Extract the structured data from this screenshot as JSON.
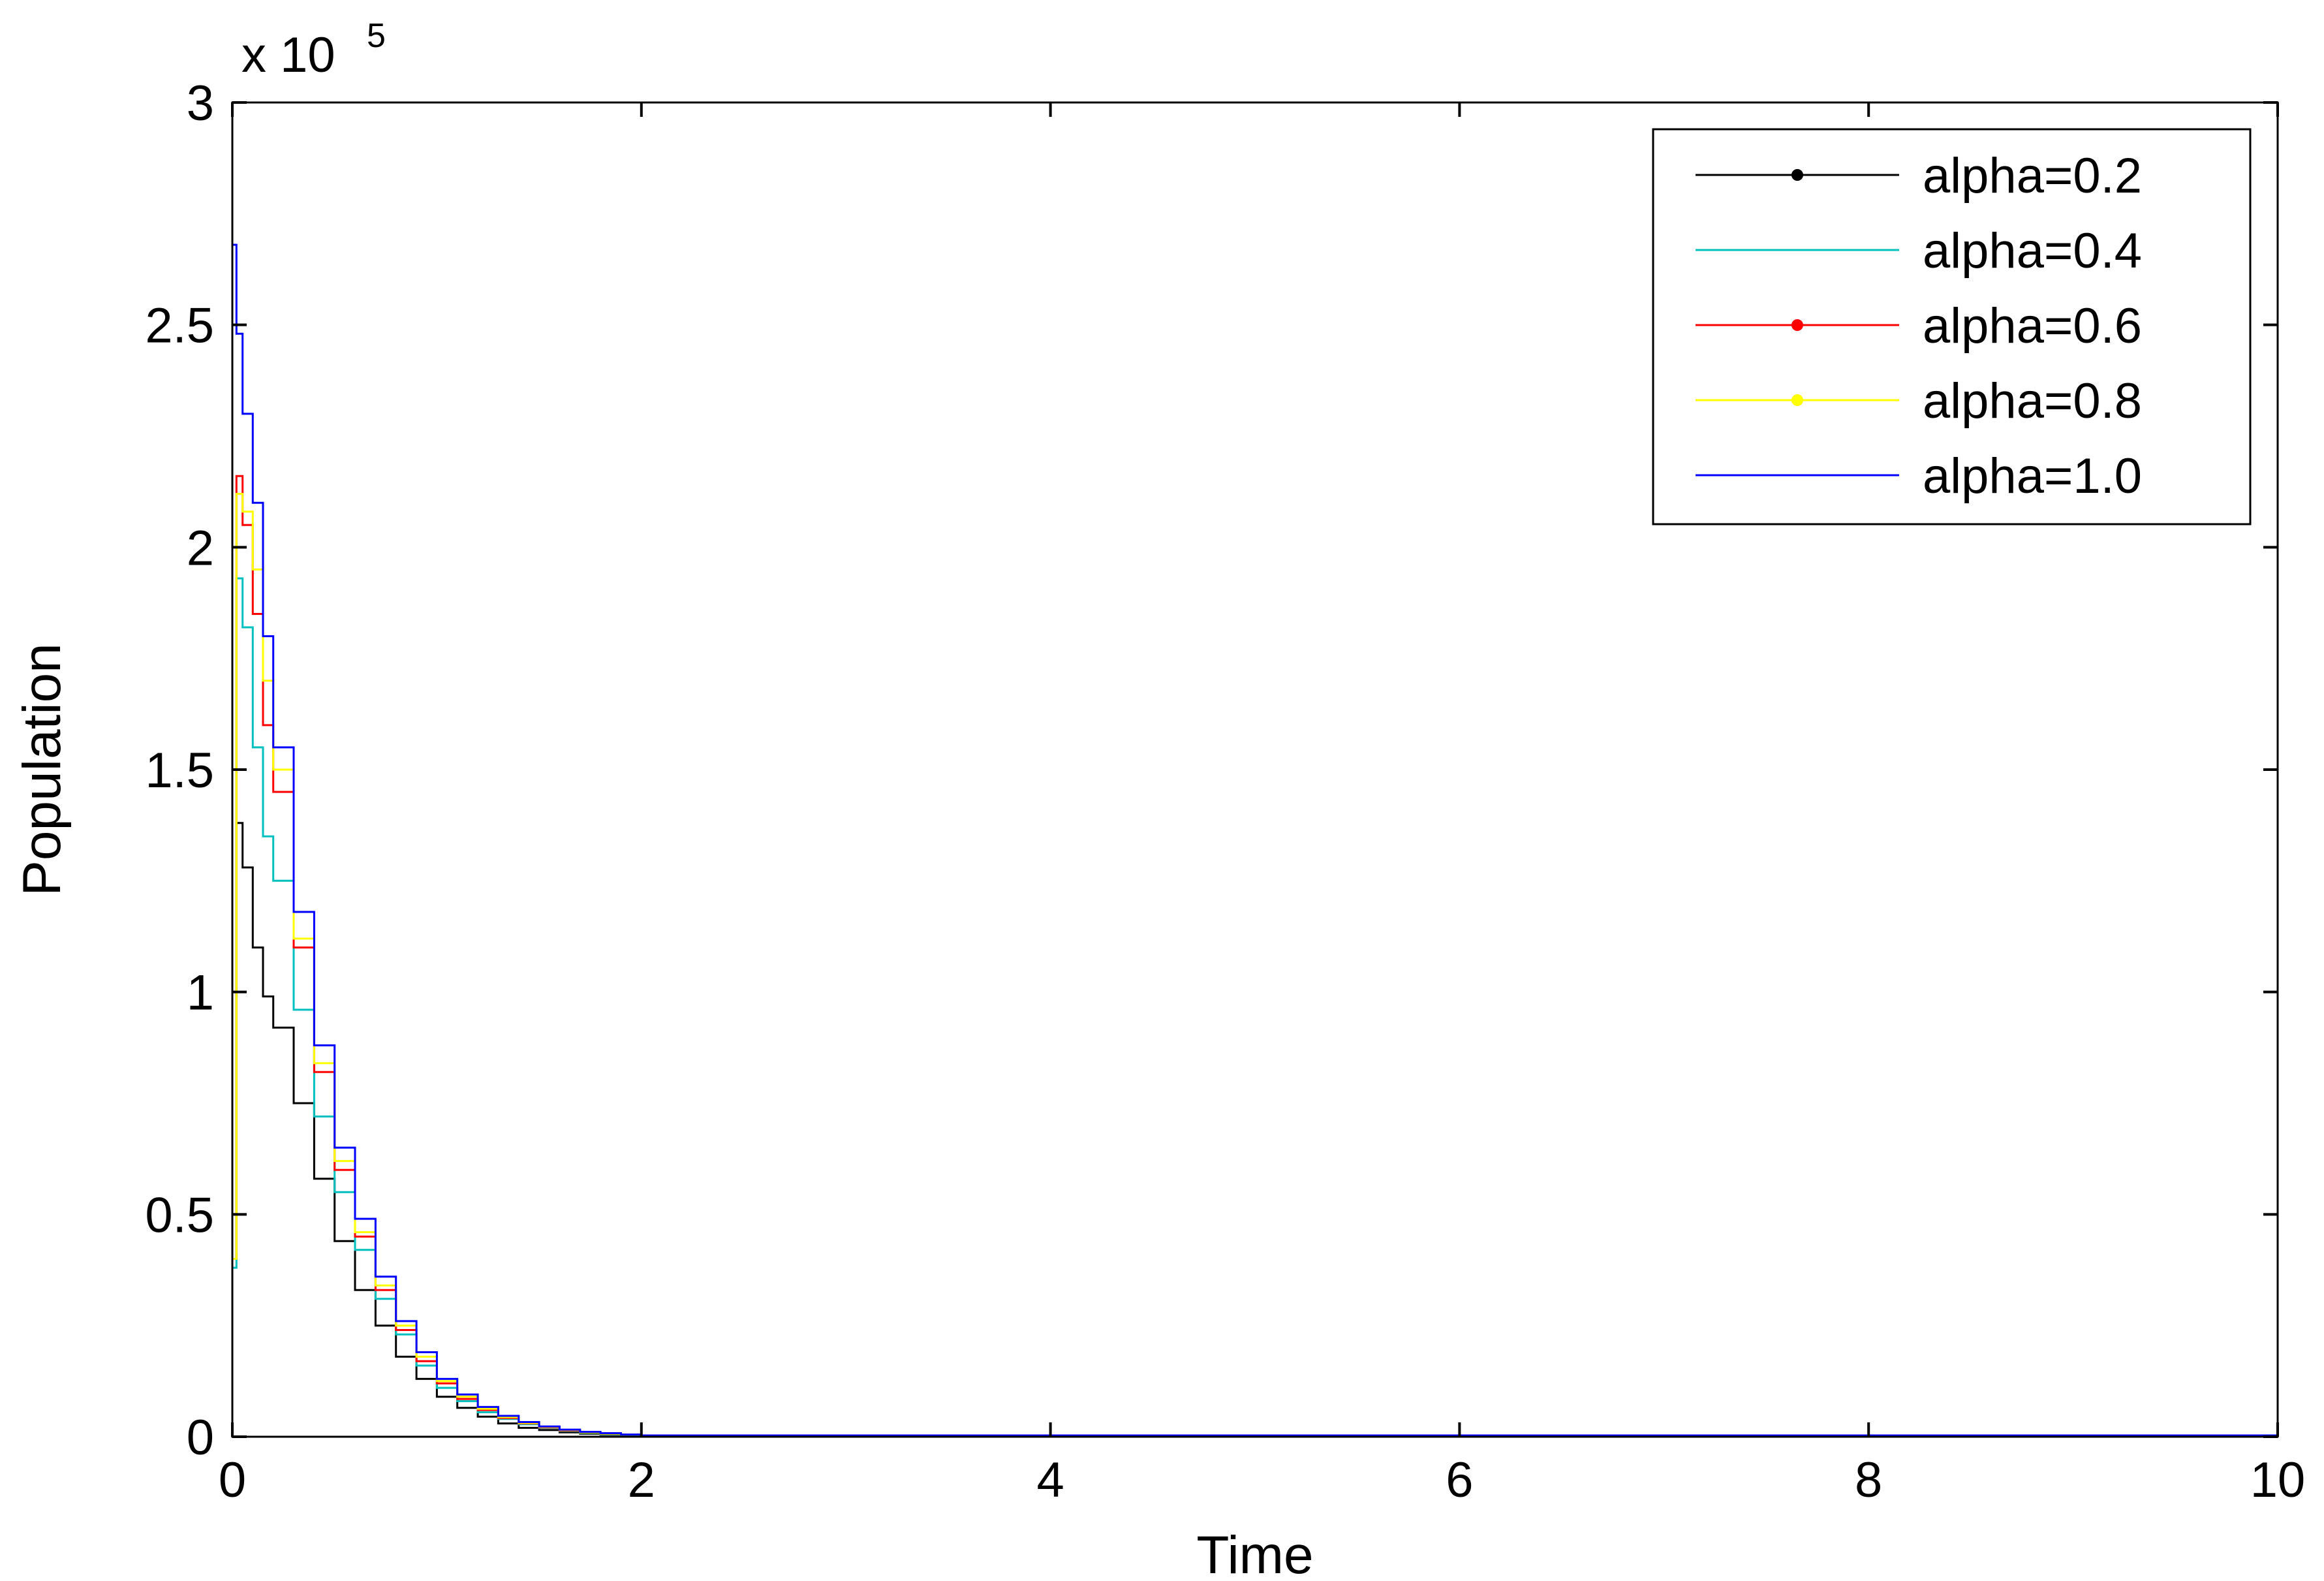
{
  "chart_data": {
    "type": "line",
    "xlabel": "Time",
    "ylabel": "Population",
    "y_multiplier_label": "x 10",
    "y_multiplier_exponent": "5",
    "xlim": [
      0,
      10
    ],
    "ylim": [
      0,
      3
    ],
    "y_unit_scale": 100000,
    "x_ticks": [
      0,
      2,
      4,
      6,
      8,
      10
    ],
    "x_tick_labels": [
      "0",
      "2",
      "4",
      "6",
      "8",
      "10"
    ],
    "y_ticks": [
      0,
      0.5,
      1,
      1.5,
      2,
      2.5,
      3
    ],
    "y_tick_labels": [
      "0",
      "0.5",
      "1",
      "1.5",
      "2",
      "2.5",
      "3"
    ],
    "grid": false,
    "legend_position": "top-right",
    "series": [
      {
        "name": "alpha=0.2",
        "color": "#000000",
        "marker": true,
        "x": [
          0,
          0.02,
          0.05,
          0.1,
          0.15,
          0.2,
          0.3,
          0.4,
          0.5,
          0.6,
          0.7,
          0.8,
          0.9,
          1.0,
          1.1,
          1.2,
          1.3,
          1.4,
          1.5,
          1.6,
          1.7,
          1.8,
          1.9,
          2.0,
          10
        ],
        "y": [
          0.4,
          1.38,
          1.28,
          1.1,
          0.99,
          0.92,
          0.75,
          0.58,
          0.44,
          0.33,
          0.25,
          0.18,
          0.13,
          0.09,
          0.065,
          0.045,
          0.03,
          0.02,
          0.015,
          0.01,
          0.007,
          0.005,
          0.003,
          0.002,
          0
        ]
      },
      {
        "name": "alpha=0.4",
        "color": "#00BFBF",
        "marker": false,
        "x": [
          0,
          0.02,
          0.05,
          0.1,
          0.15,
          0.2,
          0.3,
          0.4,
          0.5,
          0.6,
          0.7,
          0.8,
          0.9,
          1.0,
          1.1,
          1.2,
          1.3,
          1.4,
          1.5,
          1.6,
          1.7,
          1.8,
          1.9,
          2.0,
          10
        ],
        "y": [
          0.38,
          1.93,
          1.82,
          1.55,
          1.35,
          1.25,
          0.96,
          0.72,
          0.55,
          0.42,
          0.31,
          0.23,
          0.16,
          0.11,
          0.08,
          0.055,
          0.04,
          0.028,
          0.02,
          0.013,
          0.009,
          0.006,
          0.004,
          0.003,
          0
        ]
      },
      {
        "name": "alpha=0.6",
        "color": "#FF0000",
        "marker": true,
        "x": [
          0,
          0.02,
          0.05,
          0.1,
          0.15,
          0.2,
          0.3,
          0.4,
          0.5,
          0.6,
          0.7,
          0.8,
          0.9,
          1.0,
          1.1,
          1.2,
          1.3,
          1.4,
          1.5,
          1.6,
          1.7,
          1.8,
          1.9,
          2.0,
          10
        ],
        "y": [
          0.4,
          2.16,
          2.05,
          1.85,
          1.6,
          1.45,
          1.1,
          0.82,
          0.6,
          0.45,
          0.33,
          0.24,
          0.17,
          0.12,
          0.085,
          0.06,
          0.042,
          0.03,
          0.021,
          0.014,
          0.01,
          0.007,
          0.005,
          0.003,
          0
        ]
      },
      {
        "name": "alpha=0.8",
        "color": "#FFFF00",
        "marker": true,
        "x": [
          0,
          0.02,
          0.05,
          0.1,
          0.15,
          0.2,
          0.3,
          0.4,
          0.5,
          0.6,
          0.7,
          0.8,
          0.9,
          1.0,
          1.1,
          1.2,
          1.3,
          1.4,
          1.5,
          1.6,
          1.7,
          1.8,
          1.9,
          2.0,
          10
        ],
        "y": [
          0.4,
          2.12,
          2.08,
          1.95,
          1.7,
          1.5,
          1.12,
          0.84,
          0.62,
          0.46,
          0.34,
          0.25,
          0.18,
          0.125,
          0.09,
          0.063,
          0.044,
          0.031,
          0.022,
          0.015,
          0.01,
          0.007,
          0.005,
          0.003,
          0
        ]
      },
      {
        "name": "alpha=1.0",
        "color": "#0000FF",
        "marker": false,
        "x": [
          0,
          0.02,
          0.05,
          0.1,
          0.15,
          0.2,
          0.3,
          0.4,
          0.5,
          0.6,
          0.7,
          0.8,
          0.9,
          1.0,
          1.1,
          1.2,
          1.3,
          1.4,
          1.5,
          1.6,
          1.7,
          1.8,
          1.9,
          2.0,
          10
        ],
        "y": [
          2.68,
          2.48,
          2.3,
          2.1,
          1.8,
          1.55,
          1.18,
          0.88,
          0.65,
          0.49,
          0.36,
          0.26,
          0.19,
          0.13,
          0.095,
          0.067,
          0.047,
          0.033,
          0.023,
          0.016,
          0.011,
          0.008,
          0.005,
          0.003,
          0
        ]
      }
    ]
  }
}
